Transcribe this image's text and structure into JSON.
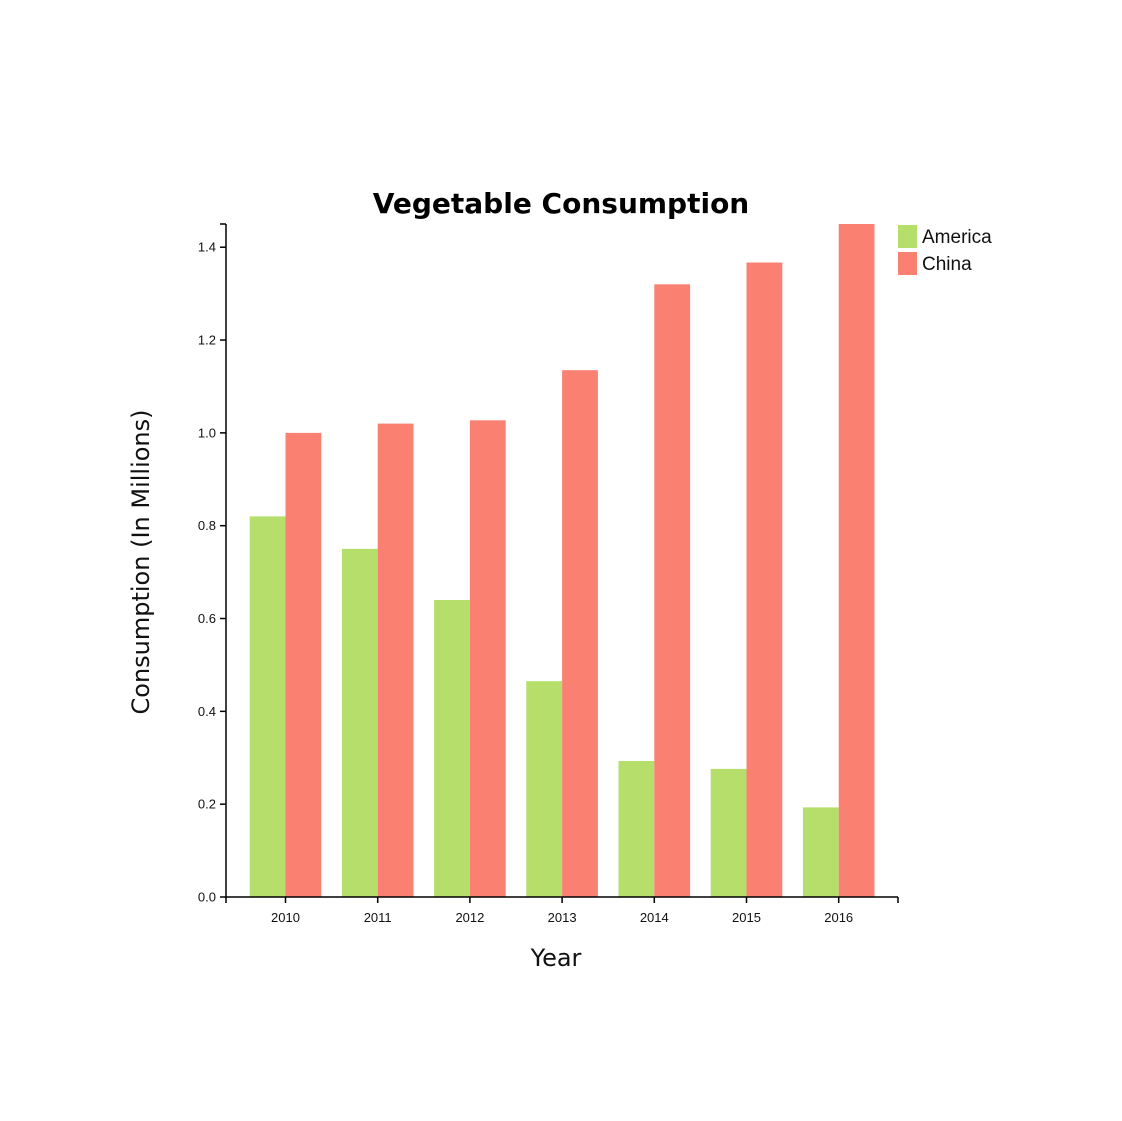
{
  "chart_data": {
    "type": "bar",
    "title": "Vegetable Consumption",
    "xlabel": "Year",
    "ylabel": "Consumption (In Millions)",
    "categories": [
      "2010",
      "2011",
      "2012",
      "2013",
      "2014",
      "2015",
      "2016"
    ],
    "series": [
      {
        "name": "America",
        "color": "#b5de6b",
        "values": [
          0.82,
          0.75,
          0.64,
          0.465,
          0.293,
          0.276,
          0.193
        ]
      },
      {
        "name": "China",
        "color": "#fa8072",
        "values": [
          1.0,
          1.02,
          1.027,
          1.135,
          1.32,
          1.367,
          1.45
        ]
      }
    ],
    "ylim": [
      0,
      1.45
    ],
    "yticks": [
      "0.0",
      "0.2",
      "0.4",
      "0.6",
      "0.8",
      "1.0",
      "1.2",
      "1.4"
    ],
    "grid": false,
    "legend": "top-right"
  }
}
